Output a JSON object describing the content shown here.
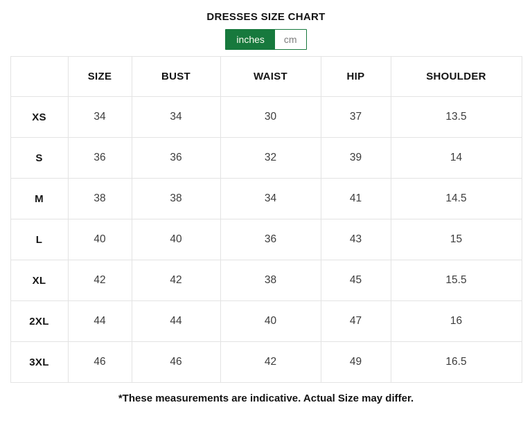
{
  "title": "DRESSES SIZE CHART",
  "unit_toggle": {
    "selected": "inches",
    "options": [
      {
        "label": "inches",
        "selected": true
      },
      {
        "label": "cm",
        "selected": false
      }
    ]
  },
  "chart_data": {
    "type": "table",
    "columns": [
      "",
      "SIZE",
      "BUST",
      "WAIST",
      "HIP",
      "SHOULDER"
    ],
    "rows": [
      {
        "label": "XS",
        "values": [
          "34",
          "34",
          "30",
          "37",
          "13.5"
        ]
      },
      {
        "label": "S",
        "values": [
          "36",
          "36",
          "32",
          "39",
          "14"
        ]
      },
      {
        "label": "M",
        "values": [
          "38",
          "38",
          "34",
          "41",
          "14.5"
        ]
      },
      {
        "label": "L",
        "values": [
          "40",
          "40",
          "36",
          "43",
          "15"
        ]
      },
      {
        "label": "XL",
        "values": [
          "42",
          "42",
          "38",
          "45",
          "15.5"
        ]
      },
      {
        "label": "2XL",
        "values": [
          "44",
          "44",
          "40",
          "47",
          "16"
        ]
      },
      {
        "label": "3XL",
        "values": [
          "46",
          "46",
          "42",
          "49",
          "16.5"
        ]
      }
    ]
  },
  "footnote": "*These measurements are indicative. Actual Size may differ.",
  "colors": {
    "accent_green": "#17793d",
    "selected_text": "#ffffff",
    "unselected_text": "#7d7d7d",
    "border_gray": "#e3e3e3",
    "text_dark": "#141414",
    "text_value": "#3c3c3c",
    "background": "#ffffff"
  }
}
